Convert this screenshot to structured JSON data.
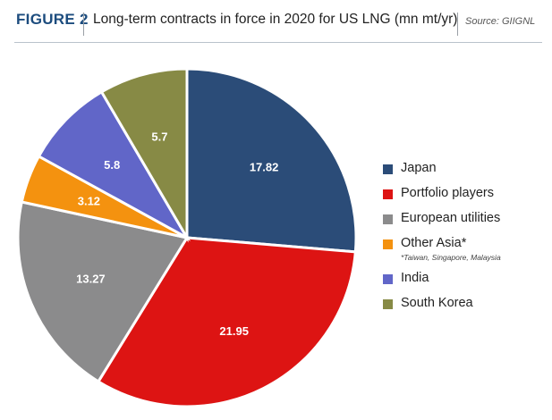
{
  "header": {
    "figure_label": "FIGURE 2",
    "title": "Long-term contracts in force in 2020 for US LNG (mn mt/yr)",
    "source": "Source: GIIGNL"
  },
  "chart_data": {
    "type": "pie",
    "title": "Long-term contracts in force in 2020 for US LNG (mn mt/yr)",
    "slices": [
      {
        "label": "Japan",
        "value": 17.82,
        "value_label": "17.82",
        "color": "#2b4c78"
      },
      {
        "label": "Portfolio players",
        "value": 21.95,
        "value_label": "21.95",
        "color": "#dd1413"
      },
      {
        "label": "European utilities",
        "value": 13.27,
        "value_label": "13.27",
        "color": "#8b8b8c"
      },
      {
        "label": "Other Asia*",
        "value": 3.12,
        "value_label": "3.12",
        "color": "#f4920f",
        "note": "*Taiwan, Singapore, Malaysia"
      },
      {
        "label": "India",
        "value": 5.8,
        "value_label": "5.8",
        "color": "#6166c8"
      },
      {
        "label": "South Korea",
        "value": 5.7,
        "value_label": "5.7",
        "color": "#878a45"
      }
    ],
    "legend_position": "right"
  }
}
